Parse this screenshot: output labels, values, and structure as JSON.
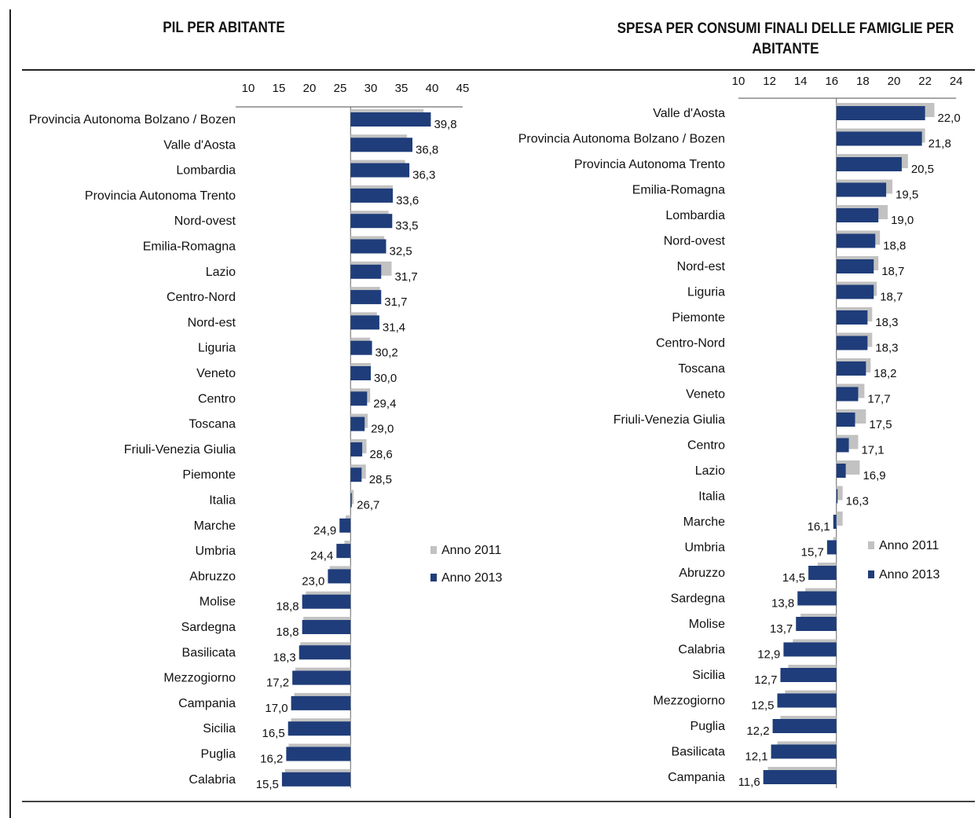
{
  "colors": {
    "anno_2011": "#c2c2c2",
    "anno_2013": "#1f3d7a"
  },
  "legend": {
    "anno_2011": "Anno 2011",
    "anno_2013": "Anno 2013"
  },
  "chart_data": [
    {
      "type": "bar",
      "orientation": "horizontal",
      "title": "PIL PER ABITANTE",
      "baseline": 26.7,
      "xlim": [
        10,
        45
      ],
      "ticks": [
        10,
        15,
        20,
        25,
        30,
        35,
        40,
        45
      ],
      "legend_position": "right",
      "categories": [
        "Provincia Autonoma Bolzano / Bozen",
        "Valle d'Aosta",
        "Lombardia",
        "Provincia Autonoma Trento",
        "Nord-ovest",
        "Emilia-Romagna",
        "Lazio",
        "Centro-Nord",
        "Nord-est",
        "Liguria",
        "Veneto",
        "Centro",
        "Toscana",
        "Friuli-Venezia Giulia",
        "Piemonte",
        "Italia",
        "Marche",
        "Umbria",
        "Abruzzo",
        "Molise",
        "Sardegna",
        "Basilicata",
        "Mezzogiorno",
        "Campania",
        "Sicilia",
        "Puglia",
        "Calabria"
      ],
      "labels": [
        "39,8",
        "36,8",
        "36,3",
        "33,6",
        "33,5",
        "32,5",
        "31,7",
        "31,7",
        "31,4",
        "30,2",
        "30,0",
        "29,4",
        "29,0",
        "28,6",
        "28,5",
        "26,7",
        "24,9",
        "24,4",
        "23,0",
        "18,8",
        "18,8",
        "18,3",
        "17,2",
        "17,0",
        "16,5",
        "16,2",
        "15,5"
      ],
      "series": [
        {
          "name": "Anno 2011",
          "values": [
            38.6,
            35.9,
            35.6,
            33.6,
            32.9,
            32.2,
            33.4,
            31.5,
            31.0,
            29.9,
            30.0,
            29.9,
            29.5,
            29.3,
            29.2,
            27.2,
            25.9,
            25.7,
            23.3,
            19.4,
            19.0,
            18.5,
            17.7,
            17.5,
            17.0,
            16.6,
            16.0
          ]
        },
        {
          "name": "Anno 2013",
          "values": [
            39.8,
            36.8,
            36.3,
            33.6,
            33.5,
            32.5,
            31.7,
            31.7,
            31.4,
            30.2,
            30.0,
            29.4,
            29.0,
            28.6,
            28.5,
            26.7,
            24.9,
            24.4,
            23.0,
            18.8,
            18.8,
            18.3,
            17.2,
            17.0,
            16.5,
            16.2,
            15.5
          ]
        }
      ]
    },
    {
      "type": "bar",
      "orientation": "horizontal",
      "title": "SPESA PER CONSUMI FINALI DELLE FAMIGLIE PER ABITANTE",
      "baseline": 16.3,
      "xlim": [
        10,
        24
      ],
      "ticks": [
        10,
        12,
        14,
        16,
        18,
        20,
        22,
        24
      ],
      "legend_position": "right",
      "categories": [
        "Valle d'Aosta",
        "Provincia Autonoma Bolzano / Bozen",
        "Provincia Autonoma Trento",
        "Emilia-Romagna",
        "Lombardia",
        "Nord-ovest",
        "Nord-est",
        "Liguria",
        "Piemonte",
        "Centro-Nord",
        "Toscana",
        "Veneto",
        "Friuli-Venezia Giulia",
        "Centro",
        "Lazio",
        "Italia",
        "Marche",
        "Umbria",
        "Abruzzo",
        "Sardegna",
        "Molise",
        "Calabria",
        "Sicilia",
        "Mezzogiorno",
        "Puglia",
        "Basilicata",
        "Campania"
      ],
      "labels": [
        "22,0",
        "21,8",
        "20,5",
        "19,5",
        "19,0",
        "18,8",
        "18,7",
        "18,7",
        "18,3",
        "18,3",
        "18,2",
        "17,7",
        "17,5",
        "17,1",
        "16,9",
        "16,3",
        "16,1",
        "15,7",
        "14,5",
        "13,8",
        "13,7",
        "12,9",
        "12,7",
        "12,5",
        "12,2",
        "12,1",
        "11,6"
      ],
      "series": [
        {
          "name": "Anno 2011",
          "values": [
            22.6,
            22.0,
            20.9,
            19.9,
            19.6,
            19.1,
            19.0,
            18.9,
            18.6,
            18.6,
            18.5,
            18.1,
            18.2,
            17.7,
            17.8,
            16.7,
            16.7,
            16.1,
            15.1,
            14.3,
            14.0,
            13.5,
            13.2,
            13.0,
            12.7,
            12.5,
            11.9
          ]
        },
        {
          "name": "Anno 2013",
          "values": [
            22.0,
            21.8,
            20.5,
            19.5,
            19.0,
            18.8,
            18.7,
            18.7,
            18.3,
            18.3,
            18.2,
            17.7,
            17.5,
            17.1,
            16.9,
            16.3,
            16.1,
            15.7,
            14.5,
            13.8,
            13.7,
            12.9,
            12.7,
            12.5,
            12.2,
            12.1,
            11.6
          ]
        }
      ]
    }
  ]
}
